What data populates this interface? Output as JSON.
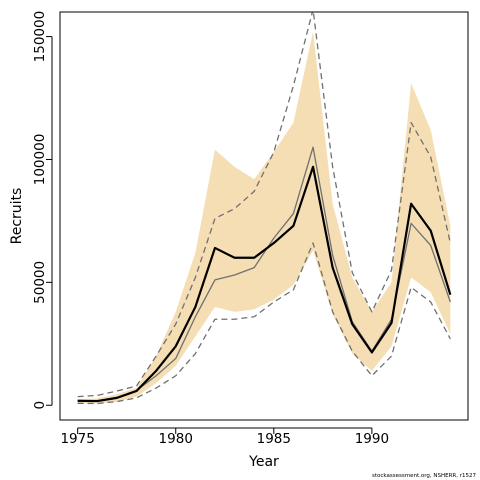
{
  "chart_data": {
    "type": "line",
    "xlabel": "Year",
    "ylabel": "Recruits",
    "xlim": [
      1974.1,
      1994.9
    ],
    "ylim": [
      -6000,
      160000
    ],
    "x_ticks": [
      1975,
      1980,
      1985,
      1990
    ],
    "x_tick_labels": [
      "1975",
      "1980",
      "1985",
      "1990"
    ],
    "y_ticks": [
      0,
      50000,
      100000,
      150000
    ],
    "y_tick_labels": [
      "0",
      "50000",
      "100000",
      "150000"
    ],
    "x": [
      1975,
      1976,
      1977,
      1978,
      1979,
      1980,
      1981,
      1982,
      1983,
      1984,
      1985,
      1986,
      1987,
      1988,
      1989,
      1990,
      1991,
      1992,
      1993,
      1994
    ],
    "shaded_band": {
      "upper": [
        2500,
        2800,
        4500,
        7000,
        20000,
        38000,
        62000,
        104000,
        97000,
        92000,
        103000,
        115000,
        152000,
        82000,
        52000,
        38000,
        50000,
        131000,
        112000,
        73000
      ],
      "lower": [
        800,
        600,
        1500,
        3500,
        9000,
        16000,
        28000,
        40000,
        38000,
        39000,
        43000,
        49000,
        63000,
        37000,
        21000,
        14000,
        24000,
        52000,
        46000,
        29000
      ],
      "color": "#f5deb3"
    },
    "series": [
      {
        "values": [
          1800,
          1700,
          3000,
          5800,
          14000,
          24000,
          40000,
          64000,
          60000,
          60000,
          66000,
          73000,
          97000,
          56000,
          33000,
          21500,
          33500,
          82000,
          71000,
          45000
        ],
        "color": "#000000",
        "style": "solid"
      },
      {
        "values": [
          2000,
          1700,
          3200,
          6000,
          12000,
          19000,
          36000,
          51000,
          53000,
          56000,
          68000,
          78000,
          105000,
          61000,
          34000,
          22000,
          35000,
          74000,
          65000,
          42000
        ],
        "color": "#707070",
        "style": "solid"
      },
      {
        "values": [
          3500,
          4000,
          5800,
          7800,
          20000,
          33000,
          52000,
          76000,
          80000,
          87000,
          103000,
          130000,
          161000,
          97000,
          54000,
          38000,
          55000,
          115000,
          101000,
          66000
        ],
        "color": "#707070",
        "style": "dashed"
      },
      {
        "values": [
          800,
          700,
          1500,
          3000,
          7000,
          12000,
          21000,
          35000,
          35000,
          36000,
          42000,
          47000,
          66000,
          38000,
          22000,
          12000,
          20000,
          48000,
          42000,
          27000
        ],
        "color": "#707070",
        "style": "dashed"
      }
    ],
    "grid": false,
    "legend": "none",
    "footnote": "stockassessment.org, NSHERR, r1527"
  }
}
